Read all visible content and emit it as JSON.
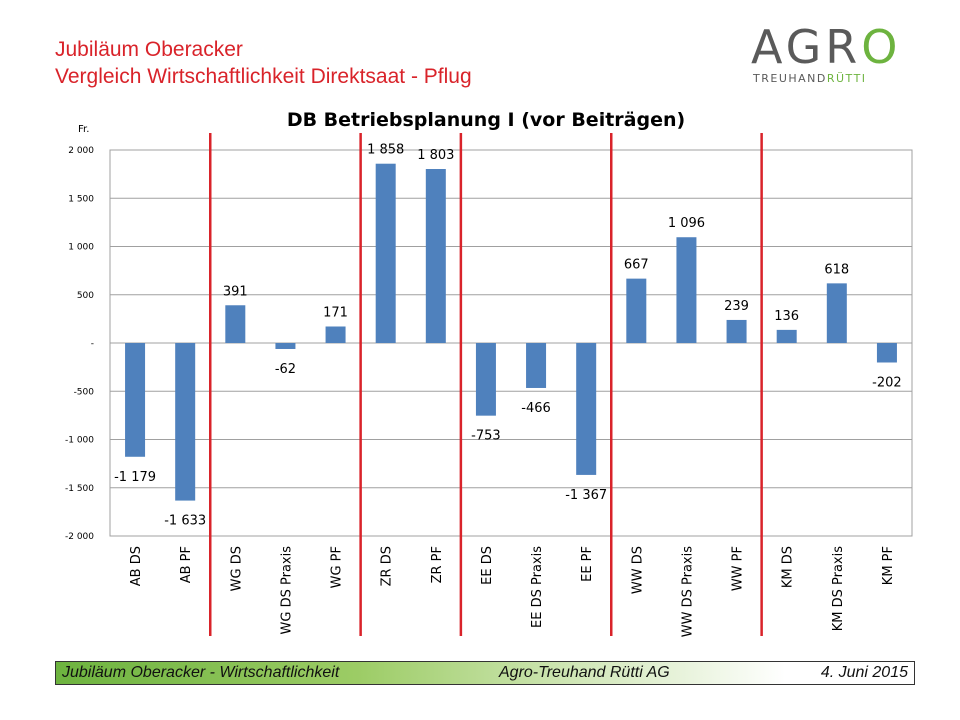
{
  "header": {
    "title_line1": "Jubiläum Oberacker",
    "title_line2": "Vergleich Wirtschaftlichkeit Direktsaat - Pflug"
  },
  "logo": {
    "main_grey": "AGR",
    "main_green": "O",
    "sub_grey": "TREUHAND",
    "sub_green": "RÜTTI"
  },
  "chart_data": {
    "type": "bar",
    "title": "DB Betriebsplanung I (vor Beiträgen)",
    "ylabel": "Fr.",
    "ylim": [
      -2000,
      2000
    ],
    "yticks": [
      2000,
      1500,
      1000,
      500,
      0,
      -500,
      -1000,
      -1500,
      -2000
    ],
    "ytick_labels": [
      "2 000",
      "1 500",
      "1 000",
      "500",
      "-",
      "-500",
      "-1 000",
      "-1 500",
      "-2 000"
    ],
    "grid": true,
    "bar_color": "#4f81bd",
    "separator_color": "#d9232a",
    "categories": [
      "AB DS",
      "AB PF",
      "WG DS",
      "WG DS Praxis",
      "WG PF",
      "ZR DS",
      "ZR PF",
      "EE DS",
      "EE DS Praxis",
      "EE PF",
      "WW DS",
      "WW DS Praxis",
      "WW PF",
      "KM DS",
      "KM DS Praxis",
      "KM PF"
    ],
    "values": [
      -1179,
      -1633,
      391,
      -62,
      171,
      1858,
      1803,
      -753,
      -466,
      -1367,
      667,
      1096,
      239,
      136,
      618,
      -202
    ],
    "value_labels": [
      "-1 179",
      "-1 633",
      "391",
      "-62",
      "171",
      "1 858",
      "1 803",
      "-753",
      "-466",
      "-1 367",
      "667",
      "1 096",
      "239",
      "136",
      "618",
      "-202"
    ],
    "group_separators_after": [
      1,
      4,
      6,
      9,
      12
    ]
  },
  "footer": {
    "left": "Jubiläum Oberacker - Wirtschaftlichkeit",
    "middle": "Agro-Treuhand Rütti AG",
    "right": "4. Juni 2015"
  }
}
